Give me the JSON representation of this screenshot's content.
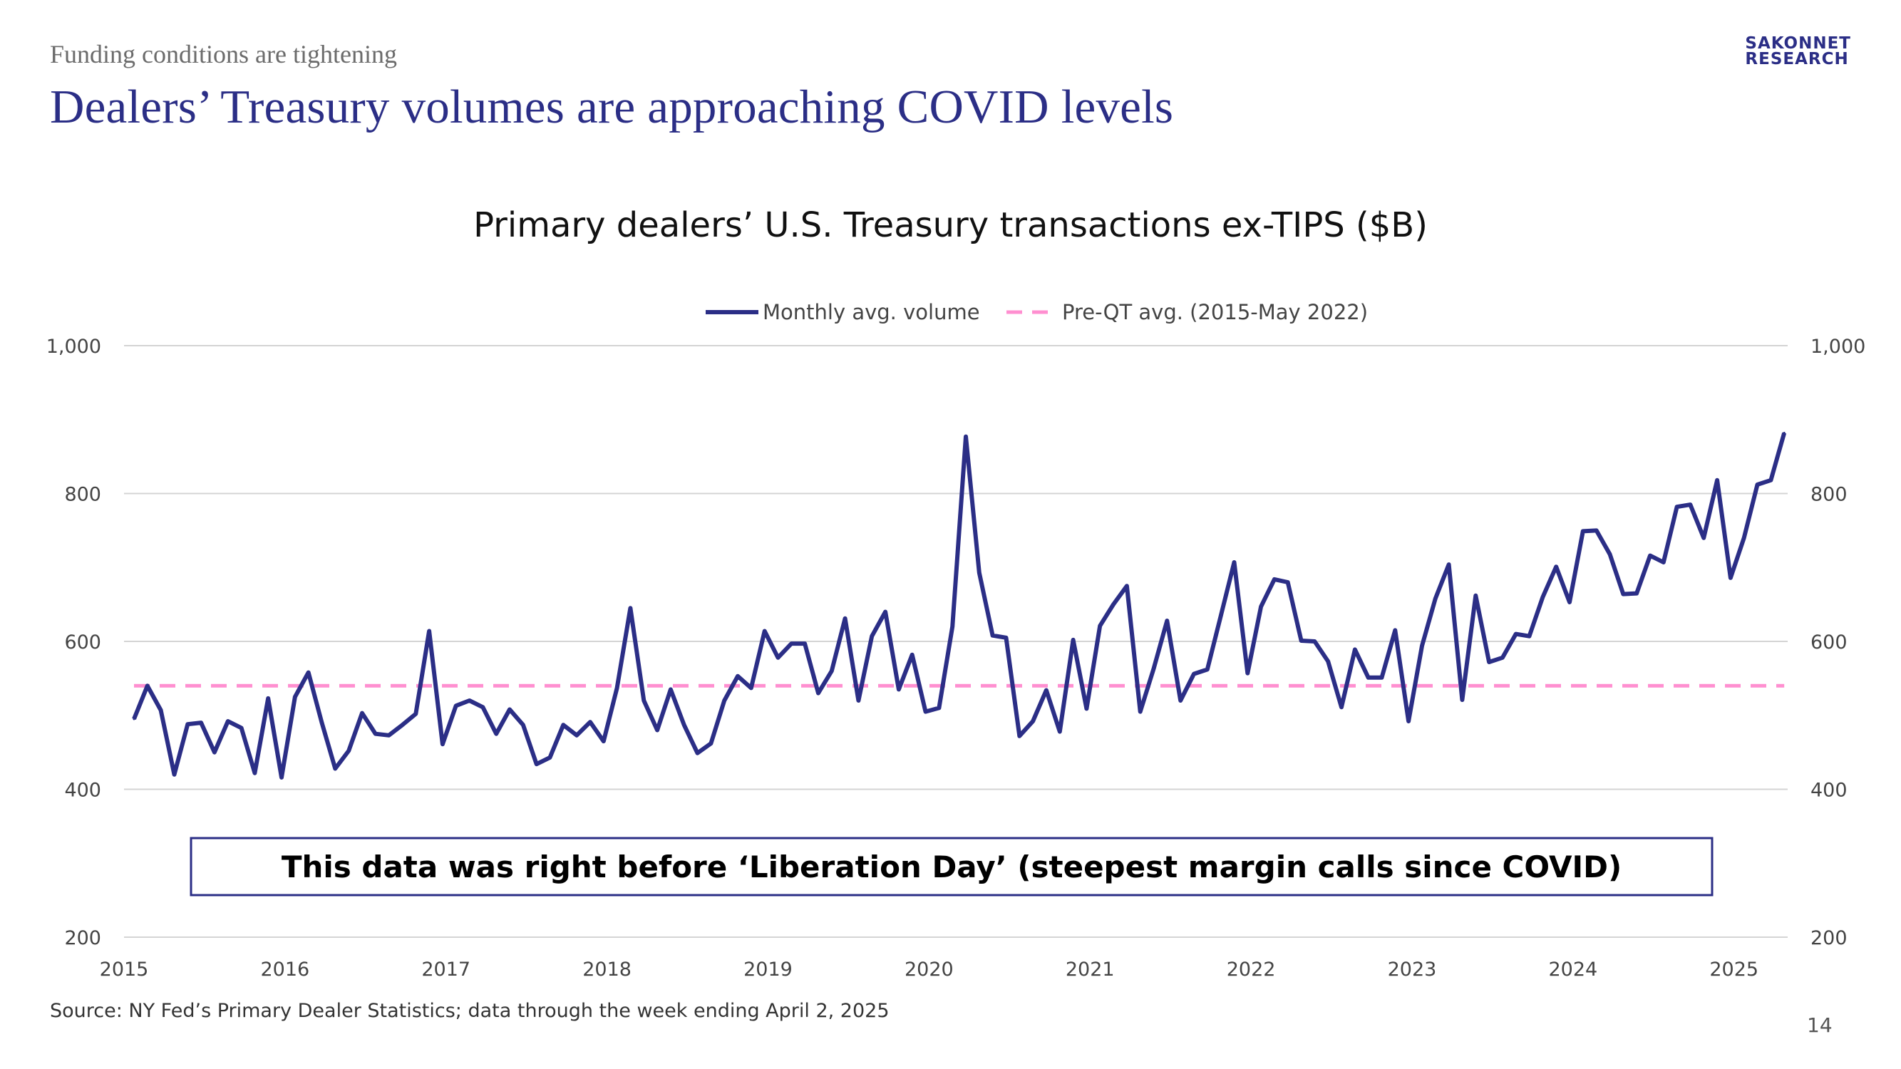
{
  "slide": {
    "eyebrow": "Funding conditions are tightening",
    "headline": "Dealers’ Treasury volumes are approaching COVID levels",
    "logo_line1": "SAKONNET",
    "logo_line2": "RESEARCH",
    "source": "Source: NY Fed’s Primary Dealer Statistics; data through the week ending April 2, 2025",
    "page_number": "14"
  },
  "colors": {
    "brand": "#2b2e86",
    "series_monthly": "#2b2e86",
    "series_preqt": "#ff8fd0",
    "gridline": "#d4d4d4",
    "annotation_border": "#2b2e86"
  },
  "chart_data": {
    "type": "line",
    "title": "Primary dealers’ U.S. Treasury transactions ex-TIPS ($B)",
    "ylim": [
      200,
      1000
    ],
    "y_ticks": [
      200,
      400,
      600,
      800,
      1000
    ],
    "y_tick_labels": [
      "200",
      "400",
      "600",
      "800",
      "1,000"
    ],
    "x_ticks": [
      "2015",
      "2016",
      "2017",
      "2018",
      "2019",
      "2020",
      "2021",
      "2022",
      "2023",
      "2024",
      "2025"
    ],
    "x_start": "2015-01",
    "grid": true,
    "legend_position": "top-center",
    "axes": "dual (left and right, same scale)",
    "series": [
      {
        "name": "Monthly avg. volume",
        "style": "solid",
        "values": [
          495,
          540,
          507,
          420,
          488,
          490,
          450,
          492,
          483,
          422,
          523,
          416,
          525,
          558,
          490,
          428,
          452,
          503,
          475,
          473,
          487,
          502,
          614,
          461,
          513,
          520,
          511,
          475,
          508,
          487,
          434,
          443,
          487,
          473,
          491,
          465,
          537,
          645,
          520,
          480,
          535,
          487,
          449,
          462,
          520,
          553,
          537,
          614,
          578,
          597,
          597,
          530,
          560,
          631,
          520,
          607,
          640,
          535,
          582,
          505,
          510,
          620,
          877,
          693,
          608,
          605,
          472,
          492,
          534,
          478,
          602,
          509,
          621,
          650,
          675,
          505,
          563,
          628,
          520,
          556,
          562,
          634,
          707,
          557,
          647,
          684,
          680,
          601,
          600,
          573,
          511,
          589,
          551,
          551,
          615,
          492,
          594,
          658,
          704,
          521,
          662,
          572,
          578,
          610,
          607,
          660,
          701,
          653,
          749,
          750,
          718,
          664,
          665,
          716,
          707,
          782,
          785,
          740,
          818,
          686,
          740,
          812,
          818,
          882
        ]
      },
      {
        "name": "Pre-QT avg. (2015-May 2022)",
        "style": "dashed",
        "values": [
          540
        ]
      }
    ],
    "annotations": [
      "This data was right before ‘Liberation Day’ (steepest margin calls since COVID)"
    ]
  }
}
